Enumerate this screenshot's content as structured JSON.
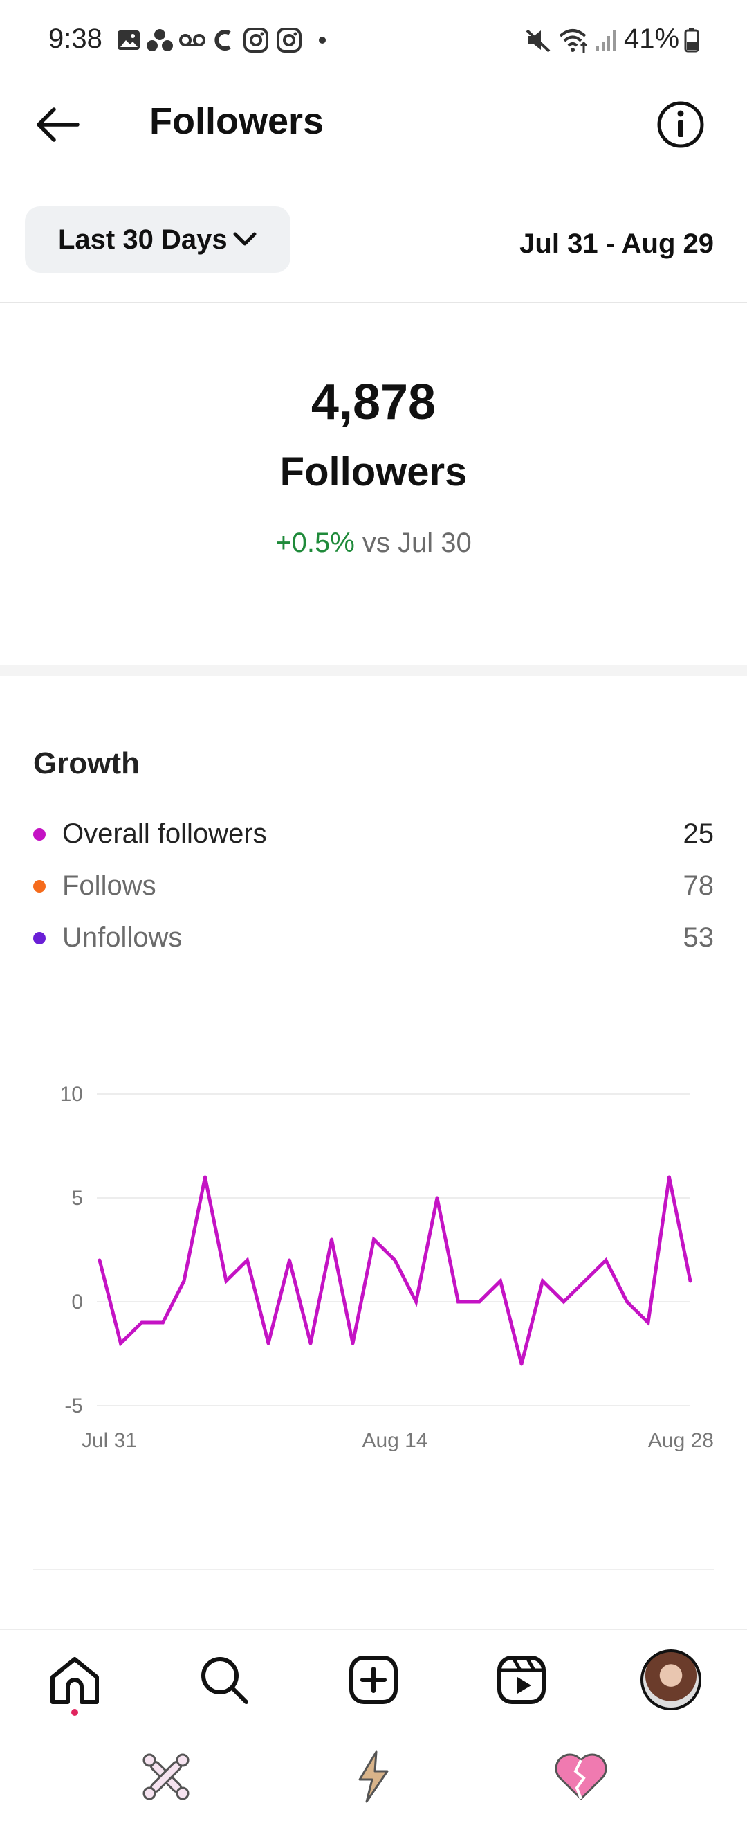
{
  "status_bar": {
    "time": "9:38",
    "battery": "41%"
  },
  "header": {
    "title": "Followers"
  },
  "range": {
    "selected": "Last 30 Days",
    "dates": "Jul 31 - Aug 29"
  },
  "summary": {
    "count": "4,878",
    "label": "Followers",
    "change": "+0.5%",
    "comparison": "vs Jul 30",
    "change_color": "#1f8a3a"
  },
  "growth": {
    "title": "Growth",
    "legend": [
      {
        "name": "Overall followers",
        "value": "25",
        "color": "#c413c4"
      },
      {
        "name": "Follows",
        "value": "78",
        "color": "#f56b1c"
      },
      {
        "name": "Unfollows",
        "value": "53",
        "color": "#6a1fd6"
      }
    ]
  },
  "chart_data": {
    "type": "line",
    "x_tick_labels": [
      "Jul 31",
      "Aug 14",
      "Aug 28"
    ],
    "y_ticks": [
      10,
      5,
      0,
      -5
    ],
    "ylim": [
      -5,
      10
    ],
    "grid": true,
    "series": [
      {
        "name": "Overall followers",
        "color": "#c413c4",
        "values": [
          2,
          -2,
          -1,
          -1,
          1,
          6,
          1,
          2,
          -2,
          2,
          -2,
          3,
          -2,
          3,
          2,
          0,
          5,
          0,
          0,
          1,
          -3,
          1,
          0,
          1,
          2,
          0,
          -1,
          6,
          1
        ]
      }
    ]
  },
  "nav": {
    "items": [
      "home-icon",
      "search-icon",
      "create-icon",
      "reels-icon",
      "profile-avatar"
    ]
  },
  "system_bar": {
    "items": [
      "crossbones-icon",
      "lightning-icon",
      "broken-heart-icon"
    ]
  }
}
